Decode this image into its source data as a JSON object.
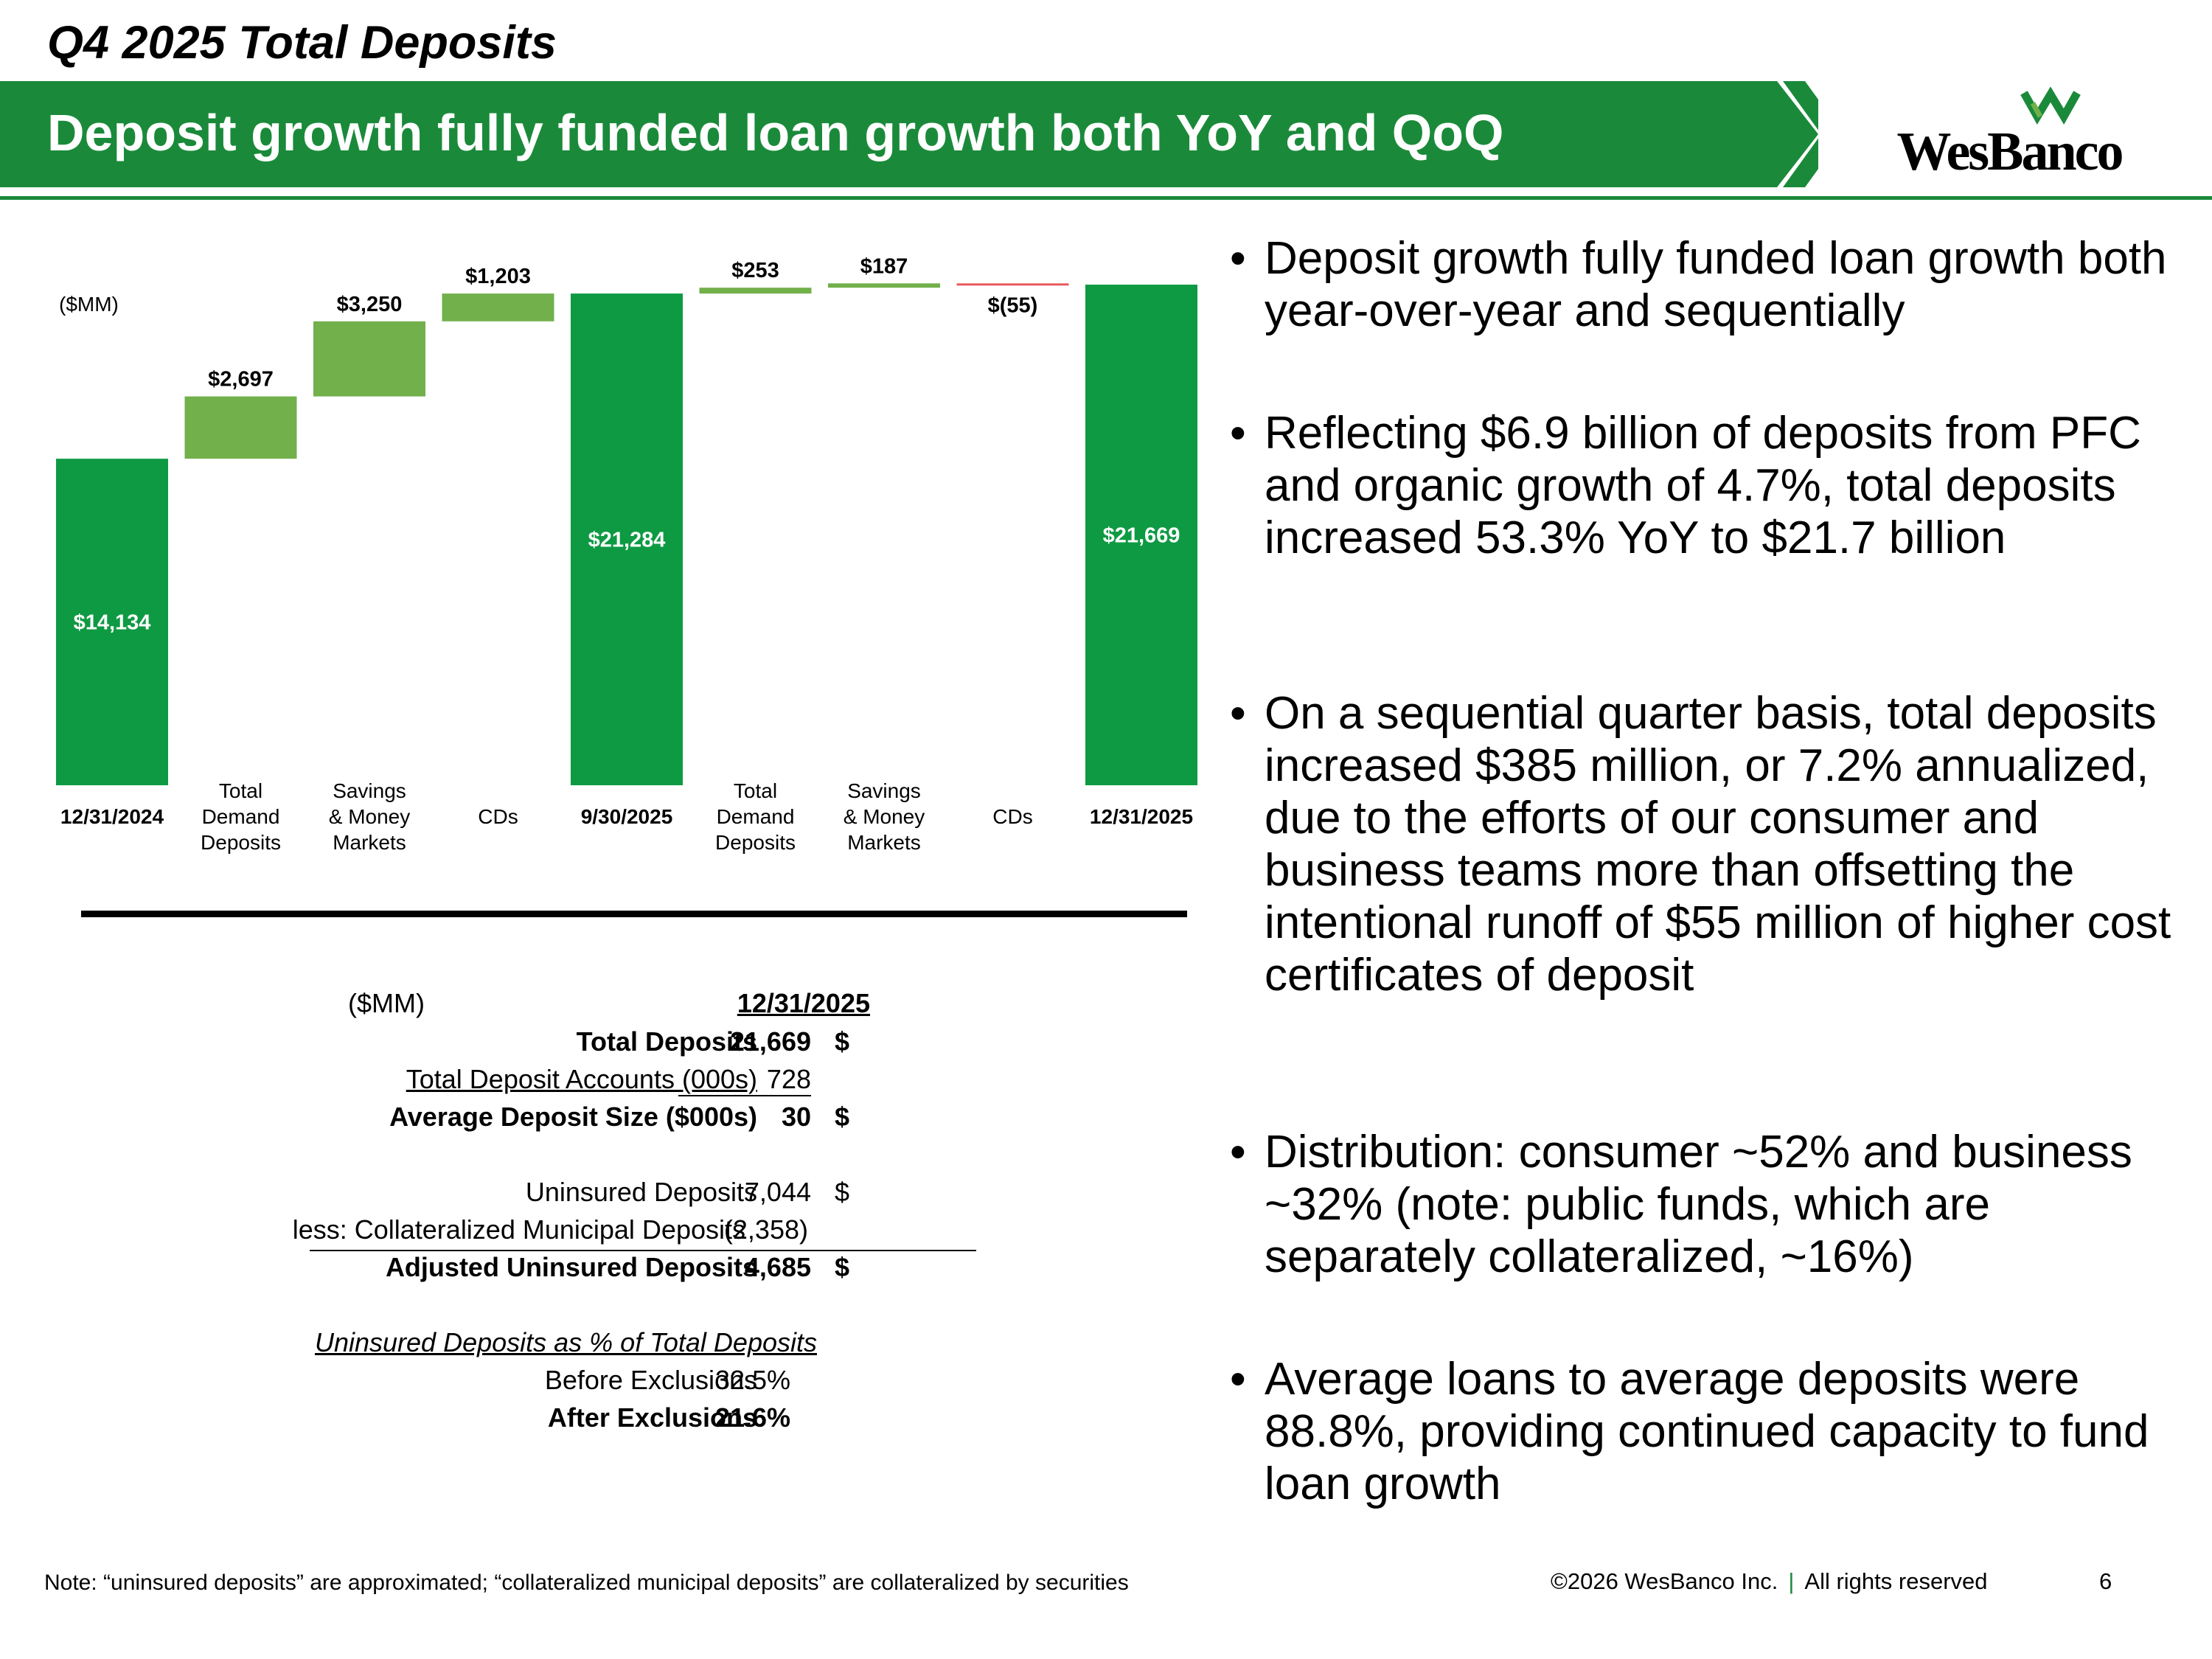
{
  "header": {
    "kicker": "Q4 2025 Total Deposits",
    "title": "Deposit growth fully funded loan growth both YoY and QoQ",
    "logo_text": "WesBanco",
    "brand_green": "#1a8a3a",
    "light_green": "#71b04b"
  },
  "chart_data": {
    "type": "bar",
    "subtype": "waterfall",
    "unit_label": "($MM)",
    "categories": [
      "12/31/2024",
      "Total Demand Deposits",
      "Savings & Money Markets",
      "CDs",
      "9/30/2025",
      "Total Demand Deposits",
      "Savings & Money Markets",
      "CDs",
      "12/31/2025"
    ],
    "category_lines": [
      [
        "12/31/2024"
      ],
      [
        "Total",
        "Demand",
        "Deposits"
      ],
      [
        "Savings",
        "& Money",
        "Markets"
      ],
      [
        "CDs"
      ],
      [
        "9/30/2025"
      ],
      [
        "Total",
        "Demand",
        "Deposits"
      ],
      [
        "Savings",
        "& Money",
        "Markets"
      ],
      [
        "CDs"
      ],
      [
        "12/31/2025"
      ]
    ],
    "kinds": [
      "total",
      "delta",
      "delta",
      "delta",
      "total",
      "delta",
      "delta",
      "delta",
      "total"
    ],
    "values": [
      14134,
      2697,
      3250,
      1203,
      21284,
      253,
      187,
      -55,
      21669
    ],
    "value_labels": [
      "$14,134",
      "$2,697",
      "$3,250",
      "$1,203",
      "$21,284",
      "$253",
      "$187",
      "$(55)",
      "$21,669"
    ],
    "colors": {
      "total": "#0e9a43",
      "increase": "#71b04b",
      "decrease": "#e8585b"
    },
    "ylim": [
      0,
      22500
    ]
  },
  "table": {
    "unit": "($MM)",
    "date_header": "12/31/2025",
    "rows": {
      "total_deposits": {
        "label": "Total Deposits",
        "cur": "$",
        "value": "21,669"
      },
      "accounts": {
        "label": "Total Deposit Accounts (000s)",
        "cur": "",
        "value": "728"
      },
      "avg_size": {
        "label": "Average Deposit Size ($000s)",
        "cur": "$",
        "value": "30"
      },
      "uninsured": {
        "label": "Uninsured Deposits",
        "cur": "$",
        "value": "7,044"
      },
      "collateralized": {
        "label": "less: Collateralized Municipal Deposits",
        "cur": "",
        "value": "(2,358)"
      },
      "adjusted": {
        "label": "Adjusted Uninsured Deposits",
        "cur": "$",
        "value": "4,685"
      }
    },
    "pct_header": "Uninsured Deposits as % of Total Deposits",
    "before": {
      "label": "Before Exclusions",
      "value": "32.5%"
    },
    "after": {
      "label": "After Exclusions",
      "value": "21.6%"
    }
  },
  "bullets": [
    "Deposit growth fully funded loan growth both year-over-year and sequentially",
    "Reflecting $6.9 billion of deposits from PFC and organic growth of 4.7%, total deposits increased 53.3% YoY to $21.7 billion",
    "On a sequential quarter basis, total deposits increased $385 million, or 7.2% annualized, due to the efforts of our consumer and business teams more than offsetting the intentional runoff of $55 million of higher cost certificates of deposit",
    "Distribution: consumer ~52% and business ~32% (note: public funds, which are separately collateralized, ~16%)",
    "Average loans to average deposits were 88.8%, providing continued capacity to fund loan growth"
  ],
  "footer": {
    "note": "Note: “uninsured deposits” are approximated; “collateralized municipal deposits” are collateralized by securities",
    "copyright": "©2026 WesBanco Inc.",
    "separator": "|",
    "rights": "All rights reserved",
    "page": "6"
  }
}
